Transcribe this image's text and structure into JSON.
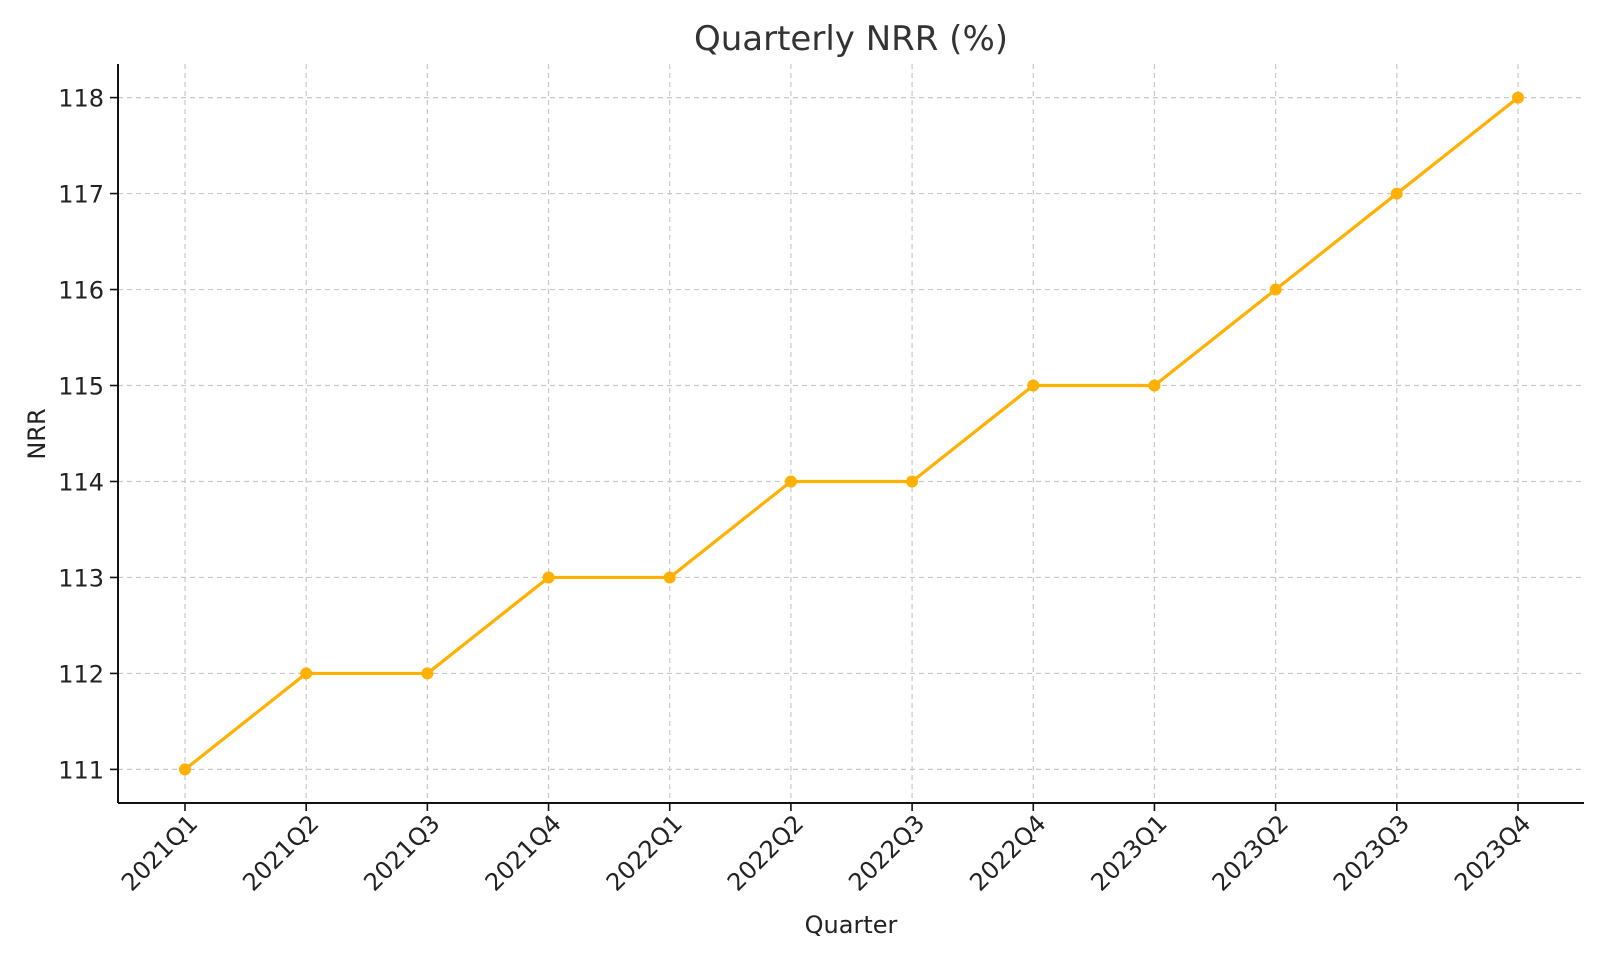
{
  "chart_data": {
    "type": "line",
    "title": "Quarterly NRR (%)",
    "xlabel": "Quarter",
    "ylabel": "NRR",
    "categories": [
      "2021Q1",
      "2021Q2",
      "2021Q3",
      "2021Q4",
      "2022Q1",
      "2022Q2",
      "2022Q3",
      "2022Q4",
      "2023Q1",
      "2023Q2",
      "2023Q3",
      "2023Q4"
    ],
    "series": [
      {
        "values": [
          111,
          112,
          112,
          113,
          113,
          114,
          114,
          115,
          115,
          116,
          117,
          118
        ],
        "color": "#FFB000"
      }
    ],
    "yticks": [
      111,
      112,
      113,
      114,
      115,
      116,
      117,
      118
    ],
    "ylim": [
      110.65,
      118.35
    ],
    "grid": true,
    "marker": "circle"
  }
}
